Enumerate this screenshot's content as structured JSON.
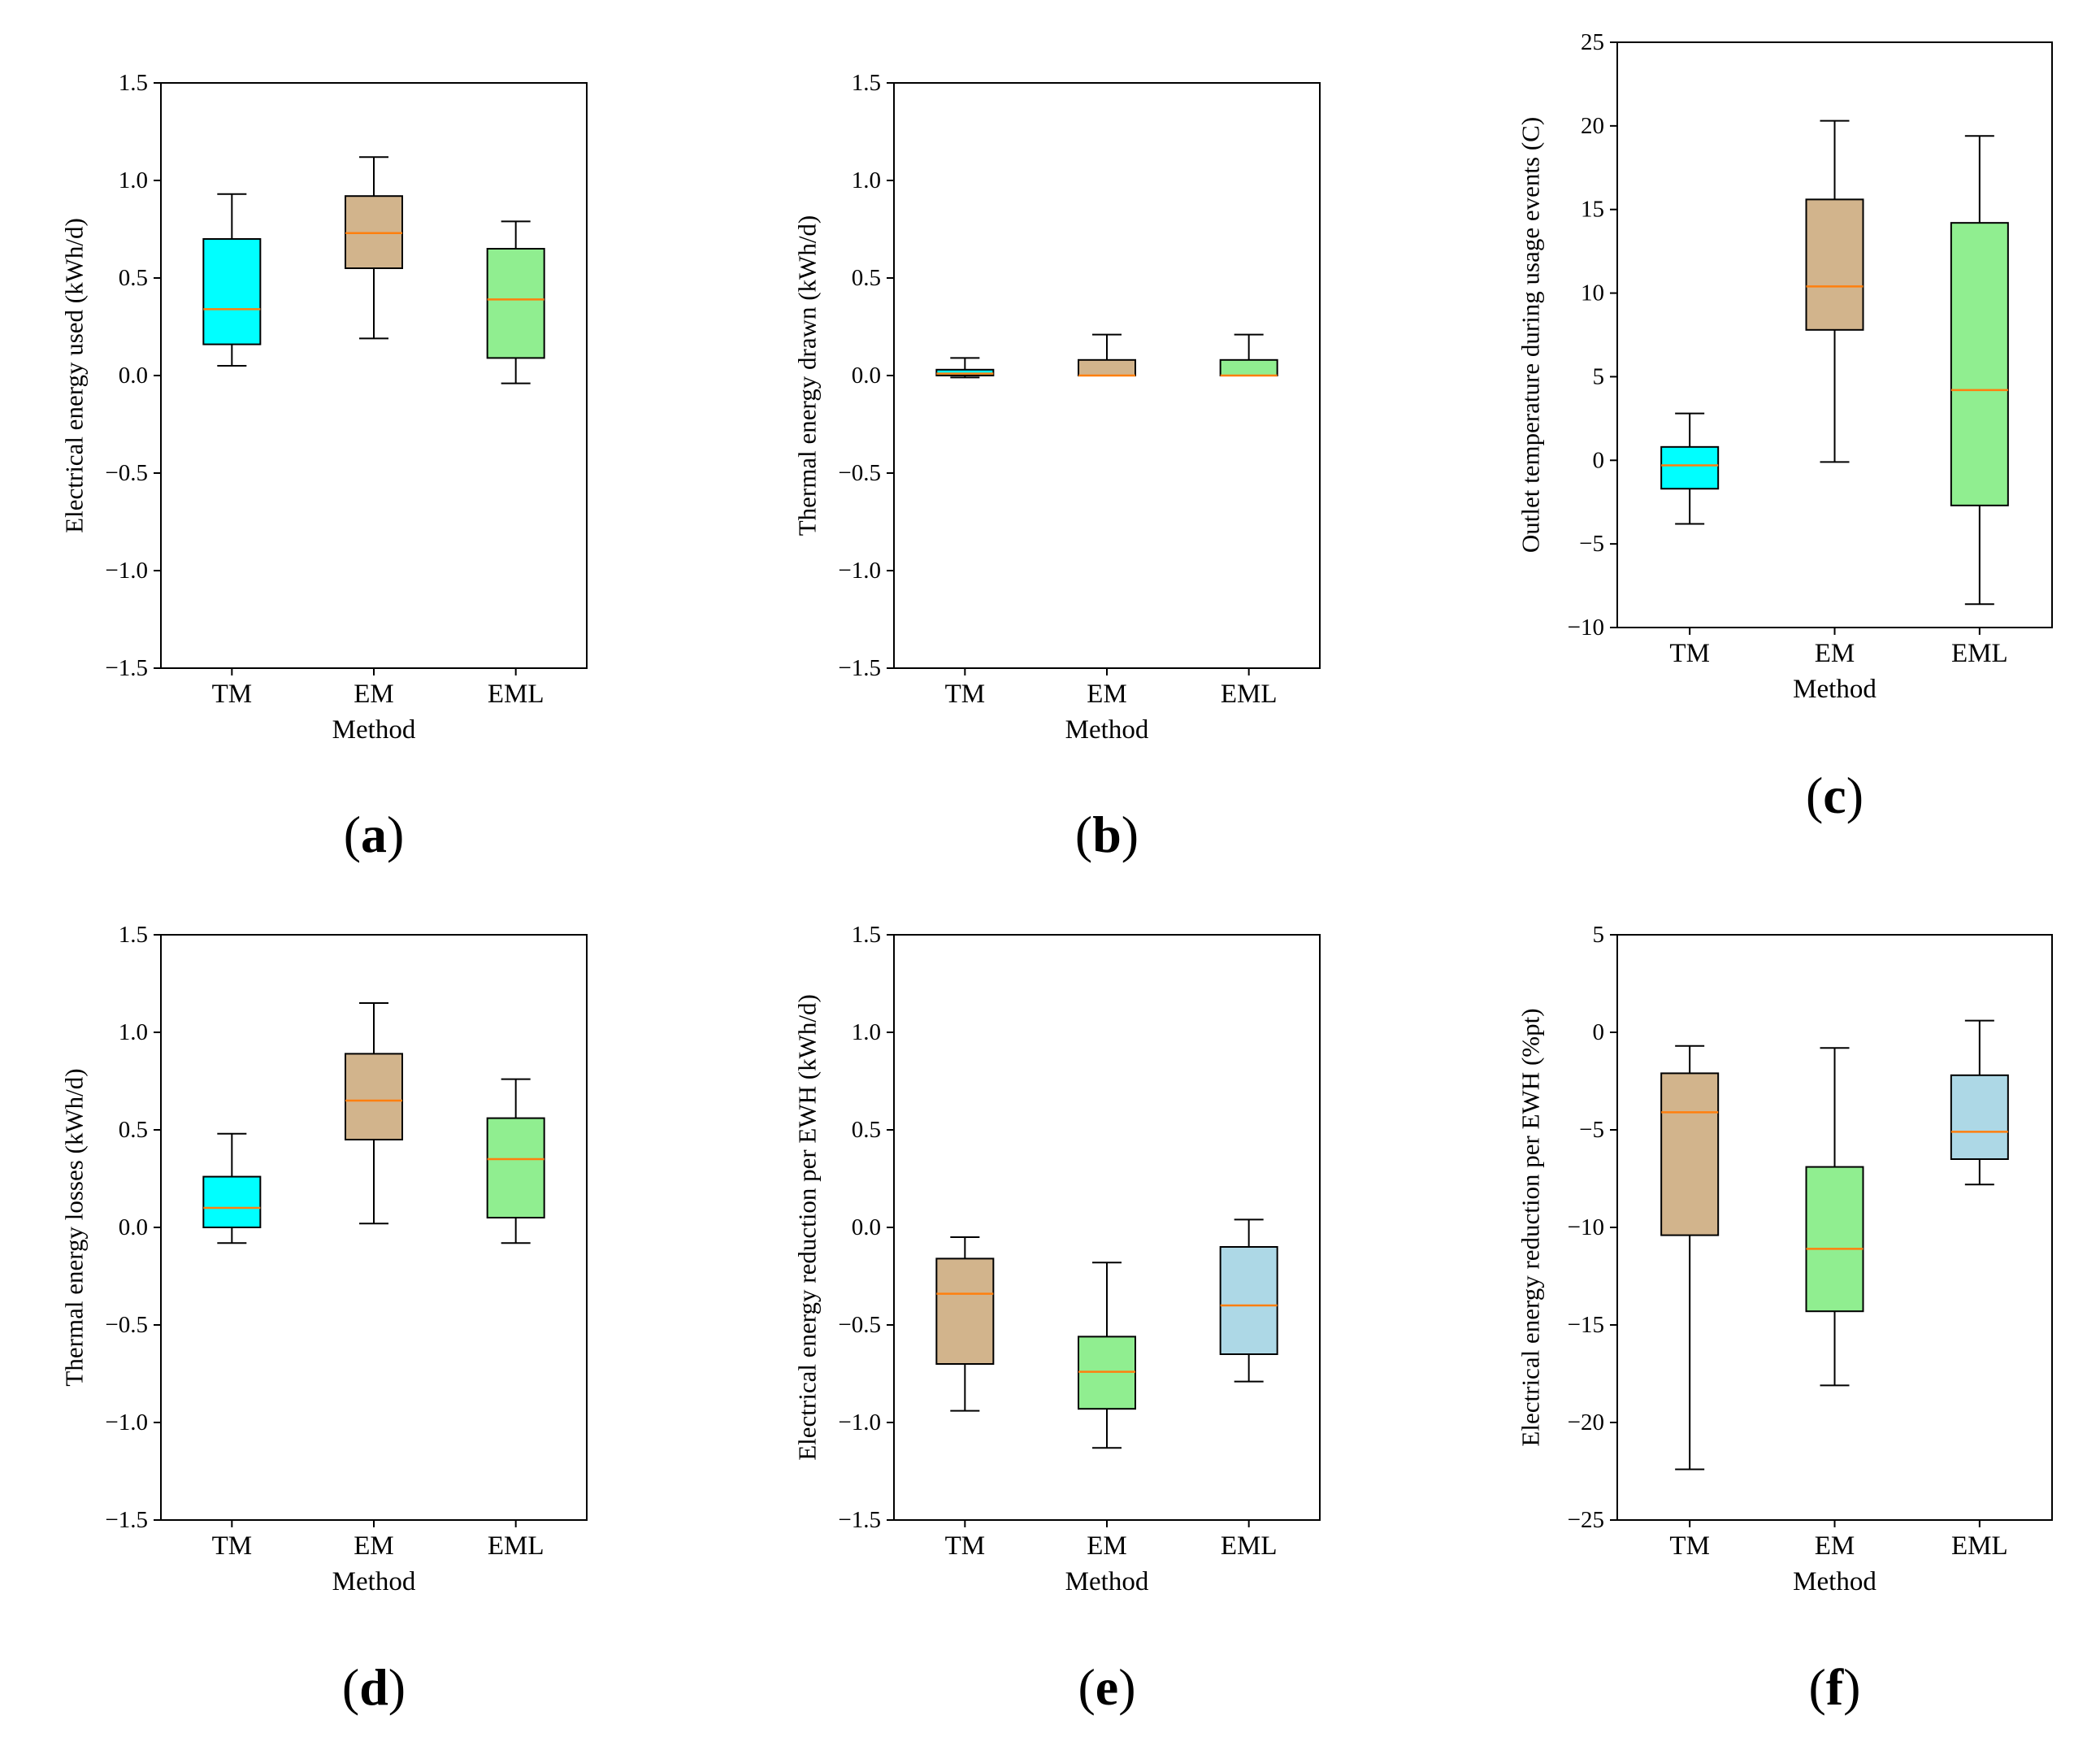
{
  "chart_data": [
    {
      "panel": "a",
      "type": "box",
      "xlabel": "Method",
      "ylabel": "Electrical energy used (kWh/d)",
      "ylim": [
        -1.5,
        1.5
      ],
      "yticks": [
        -1.5,
        -1.0,
        -0.5,
        0.0,
        0.5,
        1.0,
        1.5
      ],
      "ytick_labels": [
        "−1.5",
        "−1.0",
        "−0.5",
        "0.0",
        "0.5",
        "1.0",
        "1.5"
      ],
      "categories": [
        "TM",
        "EM",
        "EML"
      ],
      "boxes": [
        {
          "whislo": 0.05,
          "q1": 0.16,
          "med": 0.34,
          "q3": 0.7,
          "whishi": 0.93,
          "color": "#00ffff"
        },
        {
          "whislo": 0.19,
          "q1": 0.55,
          "med": 0.73,
          "q3": 0.92,
          "whishi": 1.12,
          "color": "#d2b48c"
        },
        {
          "whislo": -0.04,
          "q1": 0.09,
          "med": 0.39,
          "q3": 0.65,
          "whishi": 0.79,
          "color": "#90ee90"
        }
      ]
    },
    {
      "panel": "b",
      "type": "box",
      "xlabel": "Method",
      "ylabel": "Thermal energy drawn (kWh/d)",
      "ylim": [
        -1.5,
        1.5
      ],
      "yticks": [
        -1.5,
        -1.0,
        -0.5,
        0.0,
        0.5,
        1.0,
        1.5
      ],
      "ytick_labels": [
        "−1.5",
        "−1.0",
        "−0.5",
        "0.0",
        "0.5",
        "1.0",
        "1.5"
      ],
      "categories": [
        "TM",
        "EM",
        "EML"
      ],
      "boxes": [
        {
          "whislo": -0.01,
          "q1": 0.0,
          "med": 0.01,
          "q3": 0.03,
          "whishi": 0.09,
          "color": "#00ffff"
        },
        {
          "whislo": 0.0,
          "q1": 0.0,
          "med": 0.0,
          "q3": 0.08,
          "whishi": 0.21,
          "color": "#d2b48c"
        },
        {
          "whislo": 0.0,
          "q1": 0.0,
          "med": 0.0,
          "q3": 0.08,
          "whishi": 0.21,
          "color": "#90ee90"
        }
      ]
    },
    {
      "panel": "c",
      "type": "box",
      "xlabel": "Method",
      "ylabel": "Outlet temperature during usage events (C)",
      "ylim": [
        -10,
        25
      ],
      "yticks": [
        -10,
        -5,
        0,
        5,
        10,
        15,
        20,
        25
      ],
      "ytick_labels": [
        "−10",
        "−5",
        "0",
        "5",
        "10",
        "15",
        "20",
        "25"
      ],
      "categories": [
        "TM",
        "EM",
        "EML"
      ],
      "boxes": [
        {
          "whislo": -3.8,
          "q1": -1.7,
          "med": -0.3,
          "q3": 0.8,
          "whishi": 2.8,
          "color": "#00ffff"
        },
        {
          "whislo": -0.1,
          "q1": 7.8,
          "med": 10.4,
          "q3": 15.6,
          "whishi": 20.3,
          "color": "#d2b48c"
        },
        {
          "whislo": -8.6,
          "q1": -2.7,
          "med": 4.2,
          "q3": 14.2,
          "whishi": 19.4,
          "color": "#90ee90"
        }
      ]
    },
    {
      "panel": "d",
      "type": "box",
      "xlabel": "Method",
      "ylabel": "Thermal energy losses (kWh/d)",
      "ylim": [
        -1.5,
        1.5
      ],
      "yticks": [
        -1.5,
        -1.0,
        -0.5,
        0.0,
        0.5,
        1.0,
        1.5
      ],
      "ytick_labels": [
        "−1.5",
        "−1.0",
        "−0.5",
        "0.0",
        "0.5",
        "1.0",
        "1.5"
      ],
      "categories": [
        "TM",
        "EM",
        "EML"
      ],
      "boxes": [
        {
          "whislo": -0.08,
          "q1": 0.0,
          "med": 0.1,
          "q3": 0.26,
          "whishi": 0.48,
          "color": "#00ffff"
        },
        {
          "whislo": 0.02,
          "q1": 0.45,
          "med": 0.65,
          "q3": 0.89,
          "whishi": 1.15,
          "color": "#d2b48c"
        },
        {
          "whislo": -0.08,
          "q1": 0.05,
          "med": 0.35,
          "q3": 0.56,
          "whishi": 0.76,
          "color": "#90ee90"
        }
      ]
    },
    {
      "panel": "e",
      "type": "box",
      "xlabel": "Method",
      "ylabel": "Electrical energy reduction per EWH (kWh/d)",
      "ylim": [
        -1.5,
        1.5
      ],
      "yticks": [
        -1.5,
        -1.0,
        -0.5,
        0.0,
        0.5,
        1.0,
        1.5
      ],
      "ytick_labels": [
        "−1.5",
        "−1.0",
        "−0.5",
        "0.0",
        "0.5",
        "1.0",
        "1.5"
      ],
      "categories": [
        "TM",
        "EM",
        "EML"
      ],
      "boxes": [
        {
          "whislo": -0.94,
          "q1": -0.7,
          "med": -0.34,
          "q3": -0.16,
          "whishi": -0.05,
          "color": "#d2b48c"
        },
        {
          "whislo": -1.13,
          "q1": -0.93,
          "med": -0.74,
          "q3": -0.56,
          "whishi": -0.18,
          "color": "#90ee90"
        },
        {
          "whislo": -0.79,
          "q1": -0.65,
          "med": -0.4,
          "q3": -0.1,
          "whishi": 0.04,
          "color": "#add8e6"
        }
      ]
    },
    {
      "panel": "f",
      "type": "box",
      "xlabel": "Method",
      "ylabel": "Electrical energy reduction per EWH (%pt)",
      "ylim": [
        -25,
        5
      ],
      "yticks": [
        -25,
        -20,
        -15,
        -10,
        -5,
        0,
        5
      ],
      "ytick_labels": [
        "−25",
        "−20",
        "−15",
        "−10",
        "−5",
        "0",
        "5"
      ],
      "categories": [
        "TM",
        "EM",
        "EML"
      ],
      "boxes": [
        {
          "whislo": -22.4,
          "q1": -10.4,
          "med": -4.1,
          "q3": -2.1,
          "whishi": -0.7,
          "color": "#d2b48c"
        },
        {
          "whislo": -18.1,
          "q1": -14.3,
          "med": -11.1,
          "q3": -6.9,
          "whishi": -0.8,
          "color": "#90ee90"
        },
        {
          "whislo": -7.8,
          "q1": -6.5,
          "med": -5.1,
          "q3": -2.2,
          "whishi": 0.6,
          "color": "#add8e6"
        }
      ]
    }
  ],
  "panel_labels": [
    "a",
    "b",
    "c",
    "d",
    "e",
    "f"
  ],
  "colors": {
    "median": "#ff7f0e",
    "edge": "#000000"
  }
}
